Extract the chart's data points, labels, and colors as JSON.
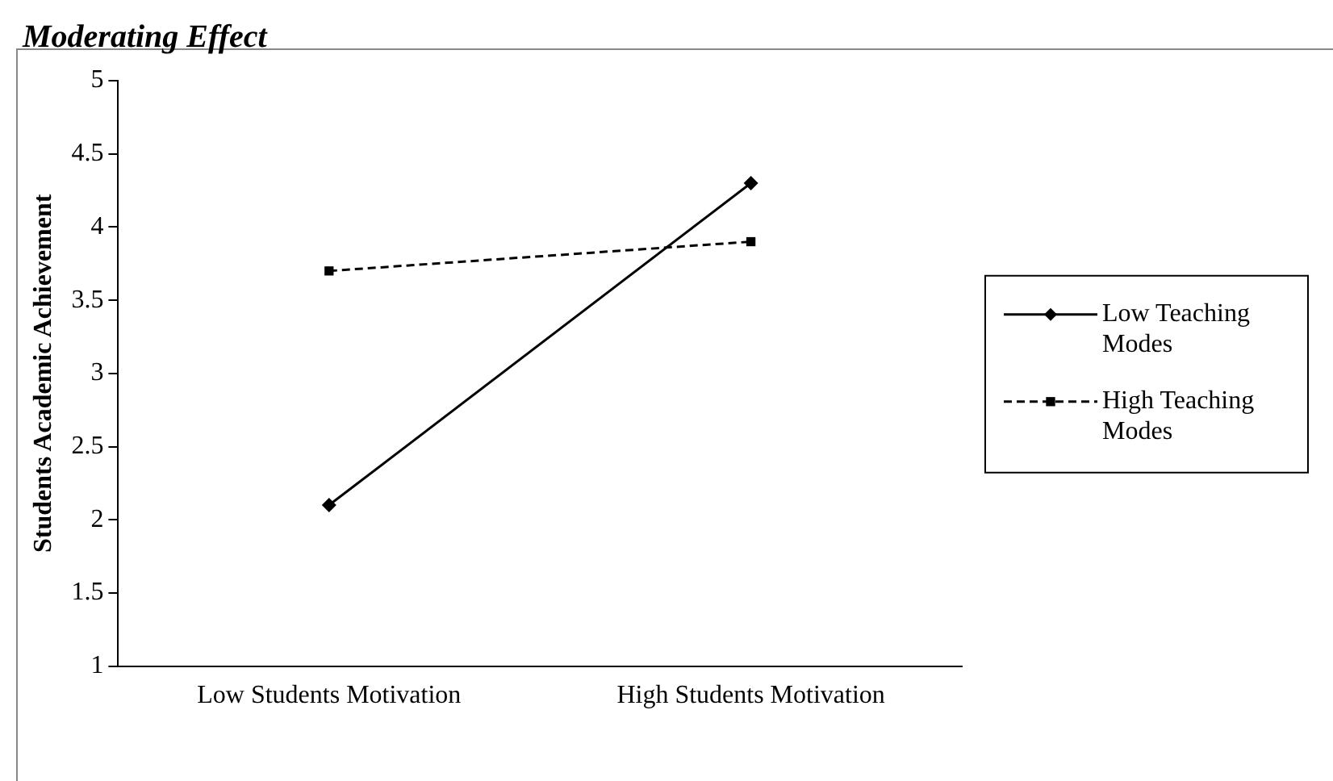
{
  "chart_data": {
    "type": "line",
    "title": "Moderating Effect",
    "ylabel": "Students Academic Achievement",
    "categories": [
      "Low Students Motivation",
      "High Students Motivation"
    ],
    "series": [
      {
        "name": "Low Teaching Modes",
        "color": "#000000",
        "values": [
          2.1,
          4.3
        ],
        "marker": "diamond",
        "line_style": "solid"
      },
      {
        "name": "High Teaching Modes",
        "color": "#000000",
        "values": [
          3.7,
          3.9
        ],
        "marker": "square",
        "line_style": "dashed"
      }
    ],
    "ylim": [
      1,
      5
    ],
    "yticks": [
      1,
      1.5,
      2,
      2.5,
      3,
      3.5,
      4,
      4.5,
      5
    ],
    "grid": false,
    "legend": "right"
  }
}
